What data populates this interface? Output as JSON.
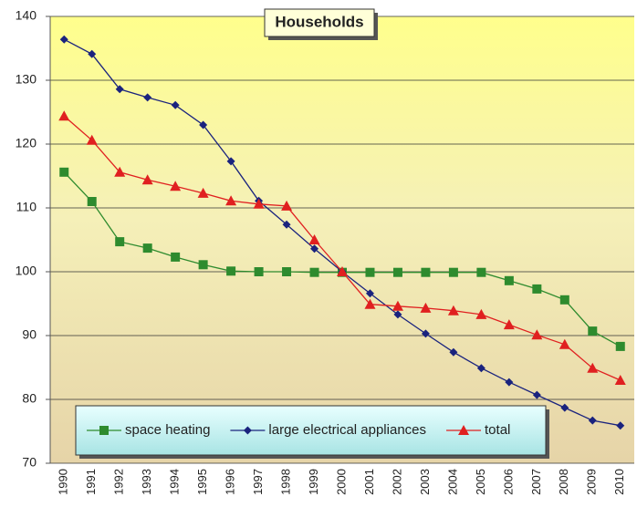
{
  "chart_data": {
    "type": "line",
    "title": "Households",
    "categories": [
      "1990",
      "1991",
      "1992",
      "1993",
      "1994",
      "1995",
      "1996",
      "1997",
      "1998",
      "1999",
      "2000",
      "2001",
      "2002",
      "2003",
      "2004",
      "2005",
      "2006",
      "2007",
      "2008",
      "2009",
      "2010"
    ],
    "series": [
      {
        "name": "space heating",
        "color": "#2e8b2e",
        "marker": "square",
        "values": [
          115.6,
          111,
          104.7,
          103.7,
          102.3,
          101.1,
          100.1,
          100,
          100,
          99.9,
          99.9,
          99.9,
          99.9,
          99.9,
          99.9,
          99.9,
          98.6,
          97.3,
          95.6,
          90.7,
          88.3
        ]
      },
      {
        "name": "large electrical appliances",
        "color": "#1a237e",
        "marker": "diamond",
        "values": [
          136.4,
          134.1,
          128.6,
          127.3,
          126.1,
          123,
          117.3,
          111.1,
          107.4,
          103.6,
          100,
          96.6,
          93.3,
          90.3,
          87.4,
          84.9,
          82.7,
          80.7,
          78.7,
          76.7,
          75.9
        ]
      },
      {
        "name": "total",
        "color": "#e02020",
        "marker": "triangle",
        "values": [
          124.4,
          120.6,
          115.6,
          114.4,
          113.4,
          112.3,
          111.1,
          110.6,
          110.3,
          105,
          100,
          94.9,
          94.6,
          94.3,
          93.9,
          93.3,
          91.7,
          90.1,
          88.6,
          84.9,
          83
        ]
      }
    ],
    "ylim": [
      70,
      140
    ],
    "yticks": [
      70,
      80,
      90,
      100,
      110,
      120,
      130,
      140
    ],
    "grid": true,
    "legend": "bottom"
  }
}
